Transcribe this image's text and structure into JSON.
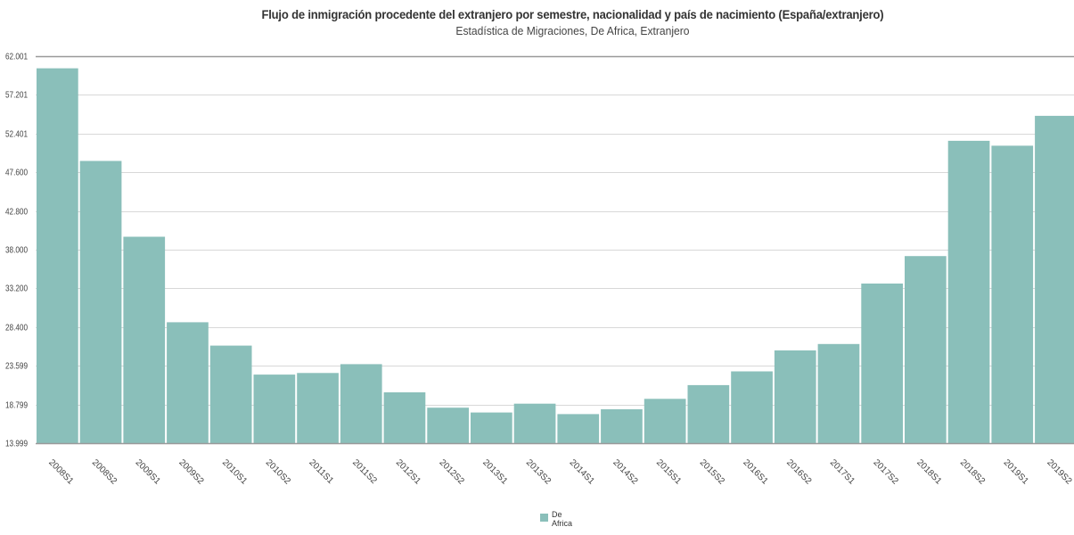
{
  "chart_data": {
    "type": "bar",
    "title": "Flujo de inmigración procedente del extranjero por semestre, nacionalidad y país de nacimiento (España/extranjero)",
    "subtitle": "Estadística de Migraciones, De Africa, Extranjero",
    "categories": [
      "2008S1",
      "2008S2",
      "2009S1",
      "2009S2",
      "2010S1",
      "2010S2",
      "2011S1",
      "2011S2",
      "2012S1",
      "2012S2",
      "2013S1",
      "2013S2",
      "2014S1",
      "2014S2",
      "2015S1",
      "2015S2",
      "2016S1",
      "2016S2",
      "2017S1",
      "2017S2",
      "2018S1",
      "2018S2",
      "2019S1",
      "2019S2"
    ],
    "series": [
      {
        "name": "De Africa",
        "color": "#8abfba",
        "values": [
          60500,
          49000,
          39600,
          29000,
          26100,
          22500,
          22700,
          23800,
          20300,
          18400,
          17800,
          18900,
          17600,
          18200,
          19500,
          21200,
          22900,
          25500,
          26300,
          33800,
          37200,
          51500,
          50900,
          54600
        ]
      }
    ],
    "ylim": [
      13999,
      62001
    ],
    "yticks": [
      "62.001",
      "57.201",
      "52.401",
      "47.600",
      "42.800",
      "38.000",
      "33.200",
      "28.400",
      "23.599",
      "18.799",
      "13.999"
    ],
    "ytick_values": [
      62001,
      57201,
      52401,
      47600,
      42800,
      38000,
      33200,
      28400,
      23599,
      18799,
      13999
    ],
    "xlabel": "",
    "ylabel": "",
    "grid": true,
    "legend_position": "bottom"
  },
  "legend": {
    "label": "De Africa",
    "label_line1": "De",
    "label_line2": "Africa"
  }
}
